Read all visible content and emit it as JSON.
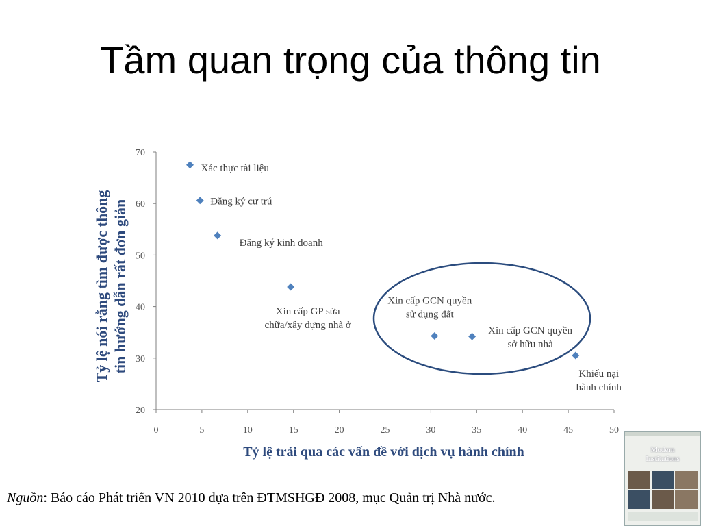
{
  "slide": {
    "title": "Tầm quan trọng của thông tin"
  },
  "chart_data": {
    "type": "scatter",
    "title": "",
    "xlabel": "Tỷ lệ trải qua các vấn đề với dịch vụ hành chính",
    "ylabel_lines": [
      "Tỷ lệ nói rằng tìm được thông",
      "tin hướng dẫn rất đơn giản"
    ],
    "xlim": [
      0,
      50
    ],
    "ylim": [
      20,
      70
    ],
    "x_ticks": [
      0,
      5,
      10,
      15,
      20,
      25,
      30,
      35,
      40,
      45,
      50
    ],
    "y_ticks": [
      20,
      30,
      40,
      50,
      60,
      70
    ],
    "grid": false,
    "marker_color": "#4f81bd",
    "highlight_color": "#2b4c7e",
    "points": [
      {
        "x": 3.7,
        "y": 67.5,
        "label_lines": [
          "Xác thực tài liệu"
        ]
      },
      {
        "x": 4.8,
        "y": 60.6,
        "label_lines": [
          "Đăng ký cư trú"
        ]
      },
      {
        "x": 6.7,
        "y": 53.8,
        "label_lines": [
          "Đăng ký kinh doanh"
        ]
      },
      {
        "x": 14.7,
        "y": 43.8,
        "label_lines": [
          "Xin cấp GP sửa",
          "chữa/xây dựng nhà ở"
        ]
      },
      {
        "x": 30.4,
        "y": 34.3,
        "label_lines": [
          "Xin cấp GCN quyền",
          "sử dụng đất"
        ]
      },
      {
        "x": 34.5,
        "y": 34.2,
        "label_lines": [
          "Xin cấp GCN quyền",
          "sở hữu nhà"
        ]
      },
      {
        "x": 45.8,
        "y": 30.5,
        "label_lines": [
          "Khiếu nại",
          "hành chính"
        ]
      }
    ],
    "highlighted_points": [
      "Xin cấp GCN quyền sử dụng đất",
      "Xin cấp GCN quyền sở hữu nhà"
    ]
  },
  "source": {
    "label": "Nguồn",
    "text": ": Báo cáo Phát triển VN 2010 dựa trên ĐTMSHGĐ 2008, mục Quản trị Nhà nước."
  },
  "report_cover": {
    "title_lines": [
      "Modern",
      "Institutions"
    ]
  }
}
